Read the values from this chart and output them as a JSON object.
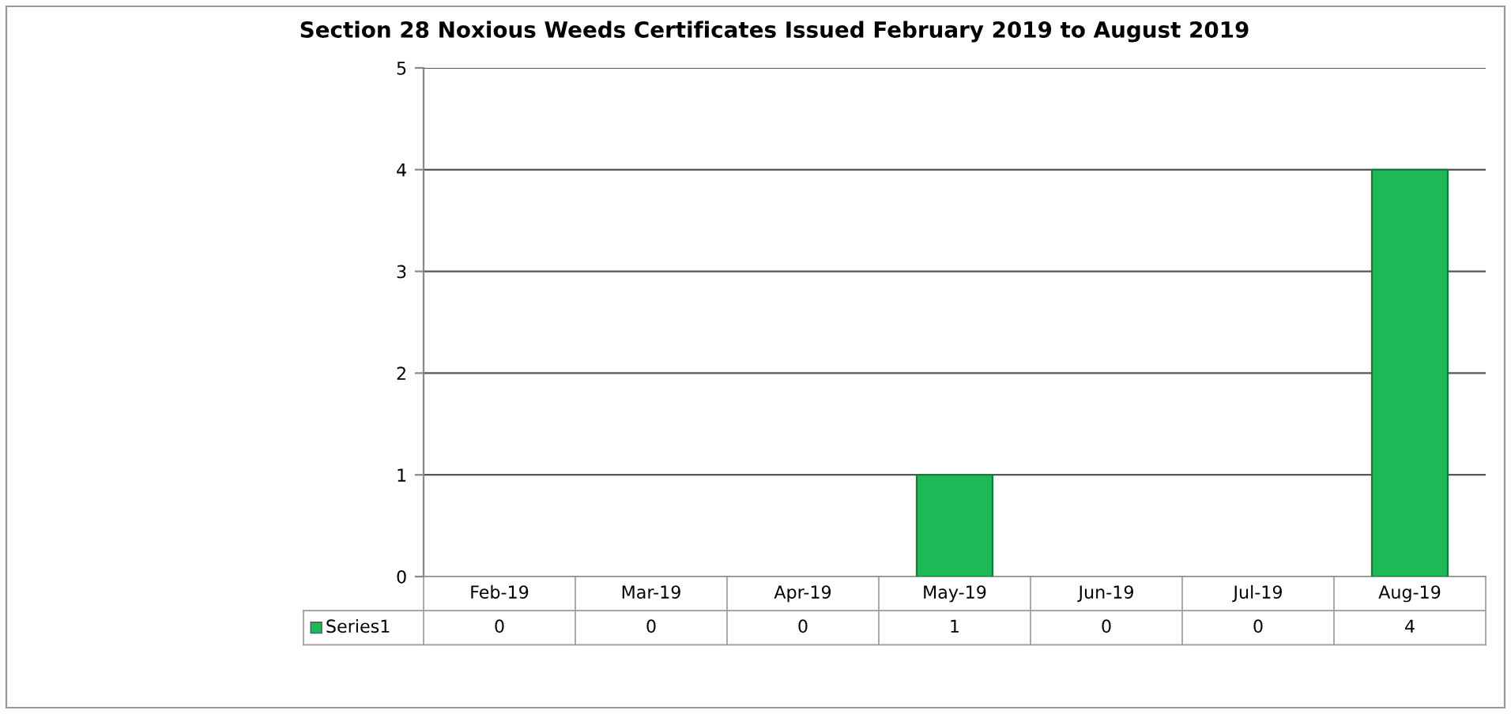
{
  "chart_data": {
    "type": "bar",
    "title": "Section 28 Noxious Weeds Certificates Issued February 2019 to August 2019",
    "categories": [
      "Feb-19",
      "Mar-19",
      "Apr-19",
      "May-19",
      "Jun-19",
      "Jul-19",
      "Aug-19"
    ],
    "series": [
      {
        "name": "Series1",
        "color": "#1fb857",
        "values": [
          0,
          0,
          0,
          1,
          0,
          0,
          4
        ]
      }
    ],
    "ylim": [
      0,
      5
    ],
    "yticks": [
      0,
      1,
      2,
      3,
      4,
      5
    ],
    "grid": "y",
    "data_labels": true
  }
}
